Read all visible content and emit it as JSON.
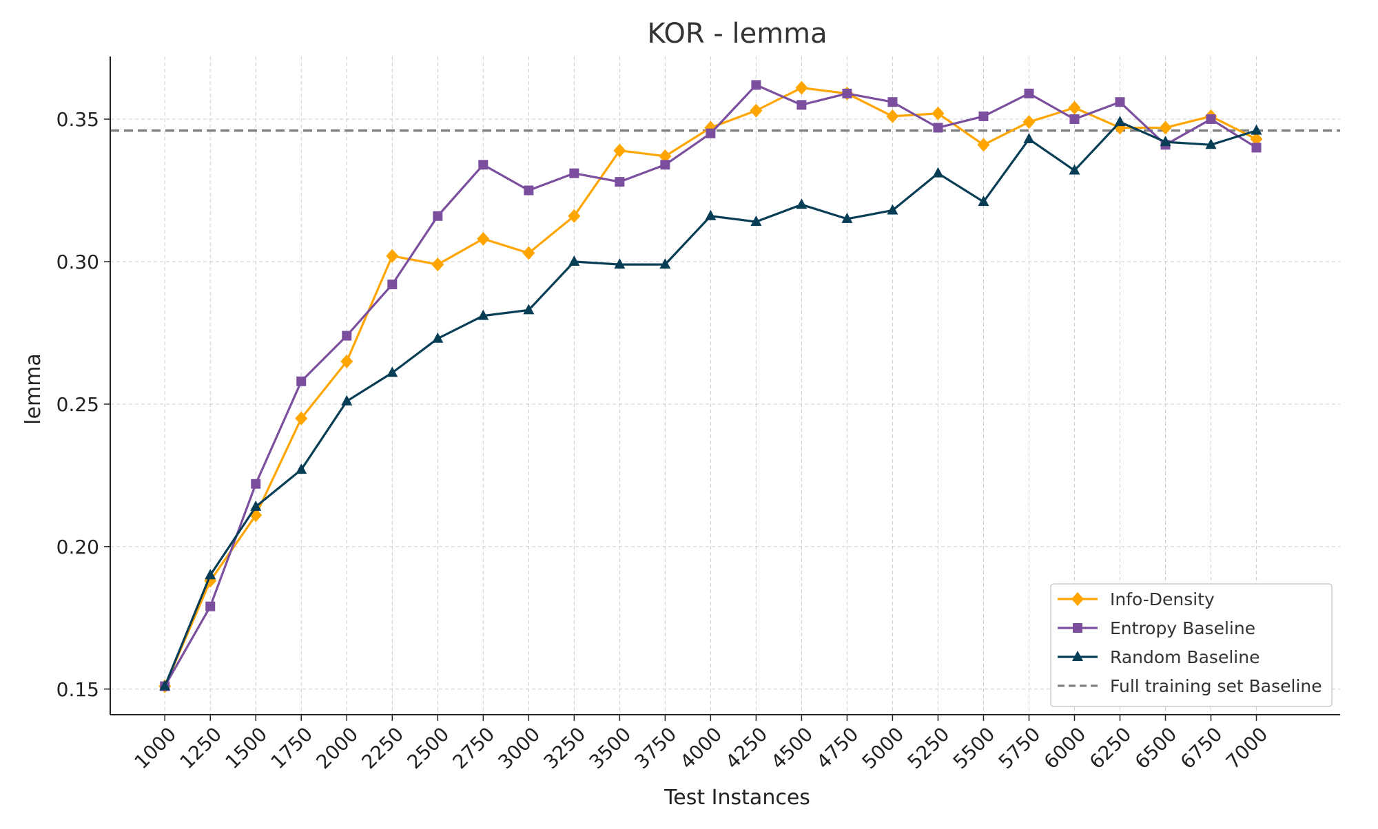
{
  "chart_data": {
    "type": "line",
    "title": "KOR - lemma",
    "xlabel": "Test Instances",
    "ylabel": "lemma",
    "x": [
      1000,
      1250,
      1500,
      1750,
      2000,
      2250,
      2500,
      2750,
      3000,
      3250,
      3500,
      3750,
      4000,
      4250,
      4500,
      4750,
      5000,
      5250,
      5500,
      5750,
      6000,
      6250,
      6500,
      6750,
      7000
    ],
    "x_tick_labels": [
      "1000",
      "1250",
      "1500",
      "1750",
      "2000",
      "2250",
      "2500",
      "2750",
      "3000",
      "3250",
      "3500",
      "3750",
      "4000",
      "4250",
      "4500",
      "4750",
      "5000",
      "5250",
      "5500",
      "5750",
      "6000",
      "6250",
      "6500",
      "6750",
      "7000"
    ],
    "y_ticks": [
      0.15,
      0.2,
      0.25,
      0.3,
      0.35
    ],
    "y_tick_labels": [
      "0.15",
      "0.20",
      "0.25",
      "0.30",
      "0.35"
    ],
    "ylim": [
      0.141,
      0.372
    ],
    "grid": true,
    "legend_position": "bottom-right",
    "series": [
      {
        "name": "Info-Density",
        "color": "#FFA500",
        "marker": "diamond",
        "values": [
          0.151,
          0.188,
          0.211,
          0.245,
          0.265,
          0.302,
          0.299,
          0.308,
          0.303,
          0.316,
          0.339,
          0.337,
          0.347,
          0.353,
          0.361,
          0.359,
          0.351,
          0.352,
          0.341,
          0.349,
          0.354,
          0.347,
          0.347,
          0.351,
          0.343
        ]
      },
      {
        "name": "Entropy Baseline",
        "color": "#7B4F9E",
        "marker": "square",
        "values": [
          0.151,
          0.179,
          0.222,
          0.258,
          0.274,
          0.292,
          0.316,
          0.334,
          0.325,
          0.331,
          0.328,
          0.334,
          0.345,
          0.362,
          0.355,
          0.359,
          0.356,
          0.347,
          0.351,
          0.359,
          0.35,
          0.356,
          0.341,
          0.35,
          0.34
        ]
      },
      {
        "name": "Random Baseline",
        "color": "#083D56",
        "marker": "triangle",
        "values": [
          0.151,
          0.19,
          0.214,
          0.227,
          0.251,
          0.261,
          0.273,
          0.281,
          0.283,
          0.3,
          0.299,
          0.299,
          0.316,
          0.314,
          0.32,
          0.315,
          0.318,
          0.331,
          0.321,
          0.343,
          0.332,
          0.349,
          0.342,
          0.341,
          0.346
        ]
      }
    ],
    "reference_line": {
      "name": "Full training set Baseline",
      "value": 0.346,
      "color": "#808080",
      "style": "dashed"
    }
  }
}
